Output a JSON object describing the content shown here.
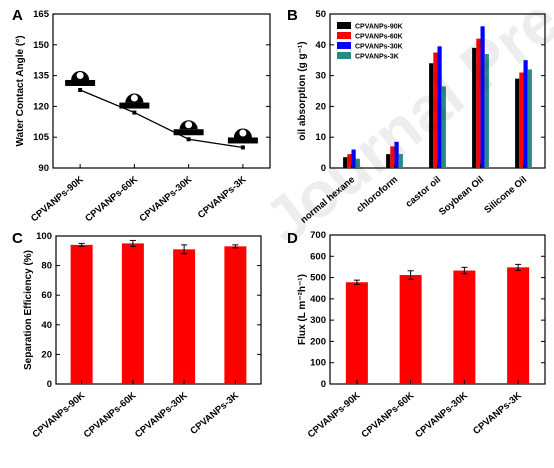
{
  "watermark": "Journal Pre-proof",
  "chart_data": [
    {
      "panel": "A",
      "type": "line",
      "categories": [
        "CPVANPs-90K",
        "CPVANPs-60K",
        "CPVANPs-30K",
        "CPVANPs-3K"
      ],
      "values": [
        128,
        117,
        104,
        100
      ],
      "ylabel": "Water Contact Angle (°)",
      "xlabel": "",
      "ylim": [
        90,
        165
      ],
      "yticks": [
        90,
        105,
        120,
        135,
        150,
        165
      ],
      "inset_icons": "droplet-on-surface",
      "colors": {
        "line": "#000000",
        "icon": "#000000"
      }
    },
    {
      "panel": "B",
      "type": "bar",
      "categories": [
        "normal hexane",
        "chloroform",
        "castor oil",
        "Soybean Oil",
        "Silicone Oil"
      ],
      "series": [
        {
          "name": "CPVANPs-90K",
          "values": [
            3.5,
            4.5,
            34,
            39,
            29
          ],
          "color": "#000000"
        },
        {
          "name": "CPVANPs-60K",
          "values": [
            4.5,
            7,
            37.5,
            42,
            31
          ],
          "color": "#ff0000"
        },
        {
          "name": "CPVANPs-30K",
          "values": [
            6,
            8.5,
            39.5,
            46,
            35
          ],
          "color": "#0000ff"
        },
        {
          "name": "CPVANPs-3K",
          "values": [
            3,
            4.5,
            26.5,
            37,
            32
          ],
          "color": "#2a8a86"
        }
      ],
      "ylabel": "oil absorption (g g⁻¹)",
      "ylim": [
        0,
        50
      ],
      "yticks": [
        0,
        10,
        20,
        30,
        40,
        50
      ],
      "legend": "top-left"
    },
    {
      "panel": "C",
      "type": "bar",
      "categories": [
        "CPVANPs-90K",
        "CPVANPs-60K",
        "CPVANPs-30K",
        "CPVANPs-3K"
      ],
      "values": [
        94,
        95,
        91,
        93
      ],
      "errors": [
        1,
        2,
        3,
        1
      ],
      "ylabel": "Separation Efficiency (%)",
      "ylim": [
        0,
        100
      ],
      "yticks": [
        0,
        20,
        40,
        60,
        80,
        100
      ],
      "colors": {
        "bar": "#ff0000"
      }
    },
    {
      "panel": "D",
      "type": "bar",
      "categories": [
        "CPVANPs-90K",
        "CPVANPs-60K",
        "CPVANPs-30K",
        "CPVANPs-3K"
      ],
      "values": [
        478,
        512,
        533,
        548
      ],
      "errors": [
        10,
        20,
        15,
        14
      ],
      "ylabel": "Flux (L m⁻²h⁻¹)",
      "ylim": [
        0,
        700
      ],
      "yticks": [
        0,
        100,
        200,
        300,
        400,
        500,
        600,
        700
      ],
      "colors": {
        "bar": "#ff0000"
      }
    }
  ]
}
